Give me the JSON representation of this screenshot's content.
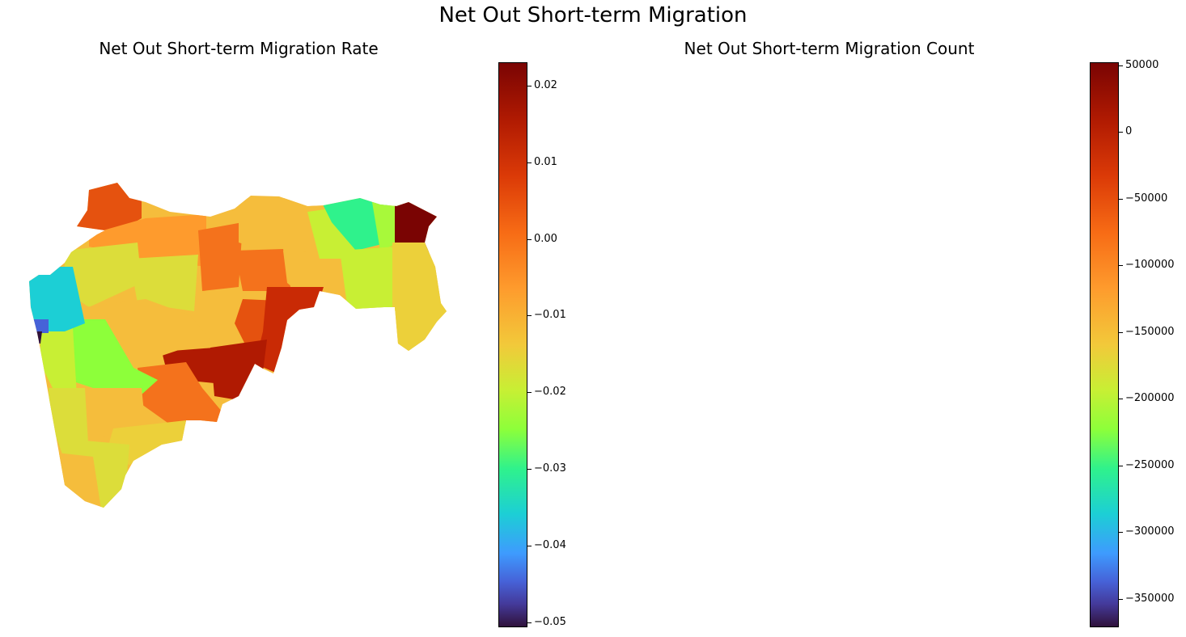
{
  "figure": {
    "title": "Net Out Short-term Migration"
  },
  "panels": [
    {
      "title": "Net Out Short-term Migration Rate",
      "colorbar": {
        "colormap": "turbo",
        "min": -0.05,
        "max": 0.023,
        "ticks": [
          "0.02",
          "0.01",
          "0.00",
          "−0.01",
          "−0.02",
          "−0.03",
          "−0.04",
          "−0.05"
        ]
      }
    },
    {
      "title": "Net Out Short-term Migration Count",
      "colorbar": {
        "colormap": "turbo",
        "min": -372000,
        "max": 50000,
        "ticks": [
          "50000",
          "0",
          "−50000",
          "−100000",
          "−150000",
          "−200000",
          "−250000",
          "−300000",
          "−350000"
        ]
      }
    }
  ],
  "colors": {
    "max_red": "#7a0403",
    "red": "#b01a02",
    "orange_red": "#db3a07",
    "orange": "#f76b15",
    "light_orange": "#fe9b2d",
    "yellow_orange": "#f5bd3c",
    "yellow": "#e4d93a",
    "yellow_green": "#c8ef34",
    "green": "#8dff3a",
    "teal": "#2ff28c",
    "cyan": "#1ccfd5",
    "blue": "#4662d8",
    "indigo": "#433d9e"
  }
}
